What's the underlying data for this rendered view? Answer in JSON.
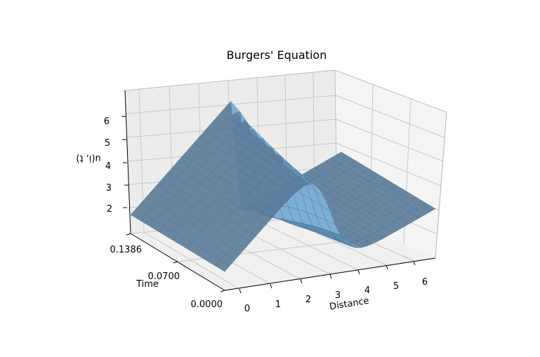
{
  "chart_data": {
    "type": "surface",
    "title": "Burgers' Equation",
    "xlabel": "Distance",
    "ylabel": "Time",
    "zlabel": "u(i, t)",
    "x_ticks": [
      "0",
      "1",
      "2",
      "3",
      "4",
      "5",
      "6"
    ],
    "y_ticks": [
      "0.0000",
      "0.0700",
      "0.1386"
    ],
    "z_ticks": [
      "2",
      "3",
      "4",
      "5",
      "6"
    ],
    "xlim": [
      0,
      6.2832
    ],
    "ylim": [
      0,
      0.1386
    ],
    "zlim": [
      1.4,
      7.0
    ],
    "grid": true,
    "surface_color": "#1f77b4",
    "surface_alpha": 0.65,
    "description_values": {
      "initial_profile": "sawtooth: u rises linearly from ~2 at x=0 to ~6.6 just before x=pi, drops to ~2 after pi, then rises back to ~3.4 at x=2pi",
      "shock_location_x": 3.1416,
      "u_left_x0": 2.2,
      "u_peak": 6.6,
      "u_trough": 1.6,
      "u_right_x2pi": 3.5
    }
  }
}
